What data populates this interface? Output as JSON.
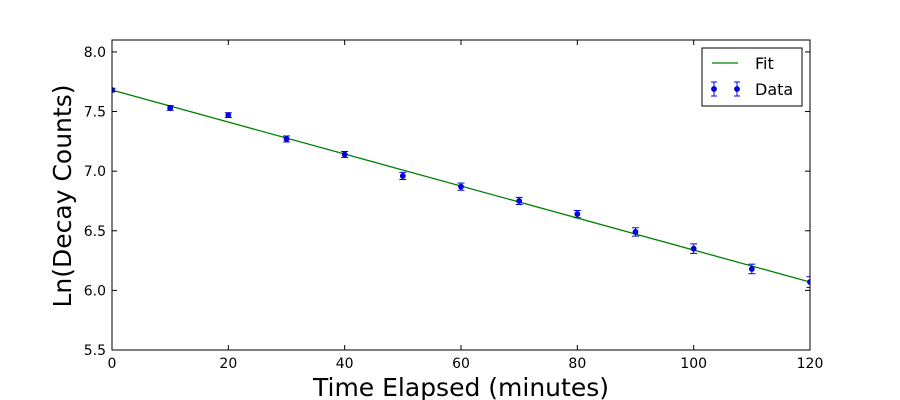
{
  "chart_data": {
    "type": "scatter",
    "title": "",
    "xlabel": "Time Elapsed (minutes)",
    "ylabel": "Ln(Decay Counts)",
    "xlim": [
      0,
      120
    ],
    "ylim": [
      5.5,
      8.1
    ],
    "xticks": [
      0,
      20,
      40,
      60,
      80,
      100,
      120
    ],
    "yticks": [
      5.5,
      6.0,
      6.5,
      7.0,
      7.5,
      8.0
    ],
    "xtick_labels": [
      "0",
      "20",
      "40",
      "60",
      "80",
      "100",
      "120"
    ],
    "ytick_labels": [
      "5.5",
      "6.0",
      "6.5",
      "7.0",
      "7.5",
      "8.0"
    ],
    "grid": false,
    "legend_position": "top-right",
    "series": [
      {
        "name": "Data",
        "kind": "errorbar",
        "color": "#0000ff",
        "x": [
          0,
          10,
          20,
          30,
          40,
          50,
          60,
          70,
          80,
          90,
          100,
          110,
          120
        ],
        "y": [
          7.68,
          7.53,
          7.47,
          7.27,
          7.14,
          6.96,
          6.87,
          6.75,
          6.64,
          6.49,
          6.35,
          6.18,
          6.07
        ],
        "yerr": [
          0.015,
          0.02,
          0.02,
          0.025,
          0.025,
          0.03,
          0.03,
          0.03,
          0.03,
          0.035,
          0.04,
          0.04,
          0.045
        ]
      },
      {
        "name": "Fit",
        "kind": "line",
        "color": "#008000",
        "x": [
          0,
          120
        ],
        "y": [
          7.68,
          6.07
        ]
      }
    ]
  }
}
